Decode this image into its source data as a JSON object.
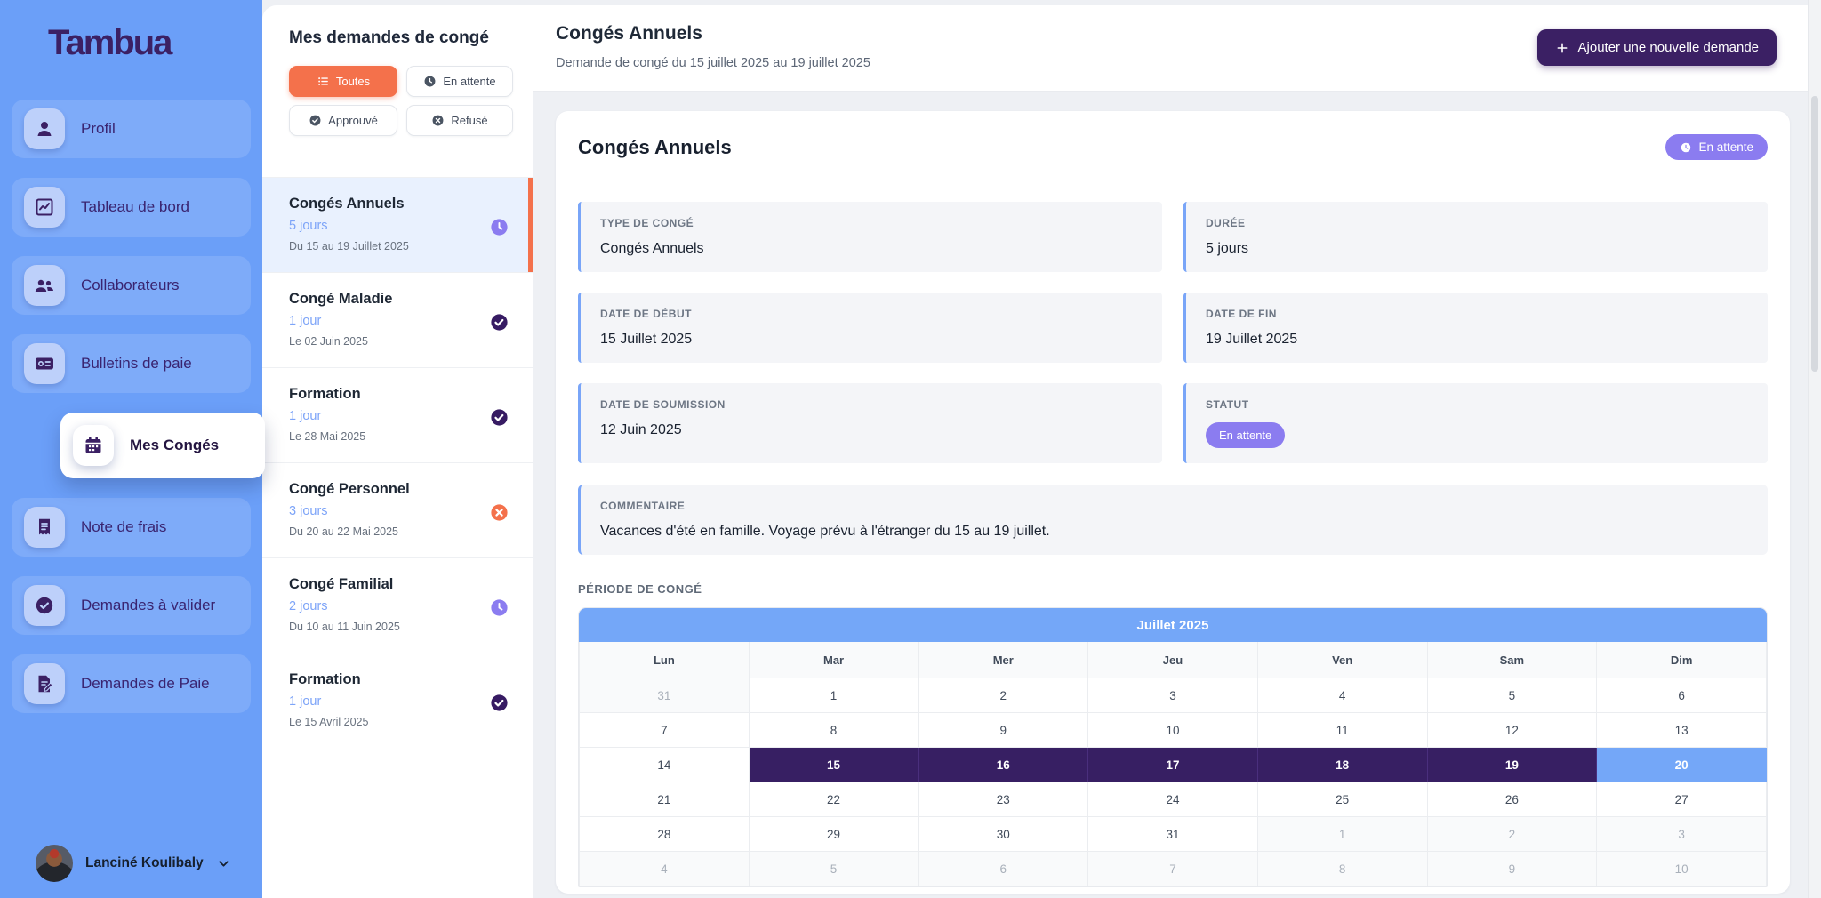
{
  "sidebar": {
    "logo": "Tambua",
    "items": [
      {
        "key": "profil",
        "label": "Profil",
        "icon": "user",
        "active": false
      },
      {
        "key": "tableau-de-bord",
        "label": "Tableau de bord",
        "icon": "line-chart",
        "active": false
      },
      {
        "key": "collaborateurs",
        "label": "Collaborateurs",
        "icon": "users",
        "active": false
      },
      {
        "key": "bulletins-de-paie",
        "label": "Bulletins de paie",
        "icon": "money-check",
        "active": false
      },
      {
        "key": "mes-conges",
        "label": "Mes Congés",
        "icon": "calendar",
        "active": true
      },
      {
        "key": "note-de-frais",
        "label": "Note de frais",
        "icon": "receipt",
        "active": false
      },
      {
        "key": "demandes-a-valider",
        "label": "Demandes à valider",
        "icon": "check-circle",
        "active": false
      },
      {
        "key": "demandes-de-paie",
        "label": "Demandes de Paie",
        "icon": "file-pen",
        "active": false
      }
    ],
    "user": {
      "name": "Lanciné Koulibaly",
      "menu_icon": "chevron-down-icon"
    }
  },
  "requests_panel": {
    "title": "Mes demandes de congé",
    "filters": [
      {
        "key": "toutes",
        "label": "Toutes",
        "icon": "list",
        "active": true
      },
      {
        "key": "en-attente",
        "label": "En attente",
        "icon": "clock",
        "active": false
      },
      {
        "key": "approuve",
        "label": "Approuvé",
        "icon": "check",
        "active": false
      },
      {
        "key": "refuse",
        "label": "Refusé",
        "icon": "x",
        "active": false
      }
    ],
    "items": [
      {
        "title": "Congés Annuels",
        "duration": "5 jours",
        "dates": "Du 15 au 19 Juillet 2025",
        "status": "pending",
        "selected": true
      },
      {
        "title": "Congé Maladie",
        "duration": "1 jour",
        "dates": "Le 02 Juin 2025",
        "status": "approved",
        "selected": false
      },
      {
        "title": "Formation",
        "duration": "1 jour",
        "dates": "Le 28 Mai 2025",
        "status": "approved",
        "selected": false
      },
      {
        "title": "Congé Personnel",
        "duration": "3 jours",
        "dates": "Du 20 au 22 Mai 2025",
        "status": "rejected",
        "selected": false
      },
      {
        "title": "Congé Familial",
        "duration": "2 jours",
        "dates": "Du 10 au 11 Juin 2025",
        "status": "pending",
        "selected": false
      },
      {
        "title": "Formation",
        "duration": "1 jour",
        "dates": "Le 15 Avril 2025",
        "status": "approved",
        "selected": false
      }
    ]
  },
  "header": {
    "title": "Congés Annuels",
    "subtitle": "Demande de congé du 15 juillet 2025 au 19 juillet 2025",
    "add_button": "Ajouter une nouvelle demande",
    "add_button_icon": "plus-icon"
  },
  "detail": {
    "title": "Congés Annuels",
    "status_badge": "En attente",
    "status_badge_icon": "clock-icon",
    "fields": [
      {
        "label": "TYPE DE CONGÉ",
        "value": "Congés Annuels",
        "type": "text"
      },
      {
        "label": "DURÉE",
        "value": "5 jours",
        "type": "text"
      },
      {
        "label": "DATE DE DÉBUT",
        "value": "15 Juillet 2025",
        "type": "text"
      },
      {
        "label": "DATE DE FIN",
        "value": "19 Juillet 2025",
        "type": "text"
      },
      {
        "label": "DATE DE SOUMISSION",
        "value": "12 Juin 2025",
        "type": "text"
      },
      {
        "label": "STATUT",
        "value": "En attente",
        "type": "badge"
      }
    ],
    "comment_label": "COMMENTAIRE",
    "comment": "Vacances d'été en famille. Voyage prévu à l'étranger du 15 au 19 juillet.",
    "period_label": "PÉRIODE DE CONGÉ",
    "calendar": {
      "month": "Juillet 2025",
      "day_names": [
        "Lun",
        "Mar",
        "Mer",
        "Jeu",
        "Ven",
        "Sam",
        "Dim"
      ],
      "weeks": [
        [
          {
            "d": "31",
            "t": "out"
          },
          {
            "d": "1",
            "t": "n"
          },
          {
            "d": "2",
            "t": "n"
          },
          {
            "d": "3",
            "t": "n"
          },
          {
            "d": "4",
            "t": "n"
          },
          {
            "d": "5",
            "t": "n"
          },
          {
            "d": "6",
            "t": "n"
          }
        ],
        [
          {
            "d": "7",
            "t": "n"
          },
          {
            "d": "8",
            "t": "n"
          },
          {
            "d": "9",
            "t": "n"
          },
          {
            "d": "10",
            "t": "n"
          },
          {
            "d": "11",
            "t": "n"
          },
          {
            "d": "12",
            "t": "n"
          },
          {
            "d": "13",
            "t": "n"
          }
        ],
        [
          {
            "d": "14",
            "t": "n"
          },
          {
            "d": "15",
            "t": "range"
          },
          {
            "d": "16",
            "t": "range"
          },
          {
            "d": "17",
            "t": "range"
          },
          {
            "d": "18",
            "t": "range"
          },
          {
            "d": "19",
            "t": "range"
          },
          {
            "d": "20",
            "t": "today"
          }
        ],
        [
          {
            "d": "21",
            "t": "n"
          },
          {
            "d": "22",
            "t": "n"
          },
          {
            "d": "23",
            "t": "n"
          },
          {
            "d": "24",
            "t": "n"
          },
          {
            "d": "25",
            "t": "n"
          },
          {
            "d": "26",
            "t": "n"
          },
          {
            "d": "27",
            "t": "n"
          }
        ],
        [
          {
            "d": "28",
            "t": "n"
          },
          {
            "d": "29",
            "t": "n"
          },
          {
            "d": "30",
            "t": "n"
          },
          {
            "d": "31",
            "t": "n"
          },
          {
            "d": "1",
            "t": "out"
          },
          {
            "d": "2",
            "t": "out"
          },
          {
            "d": "3",
            "t": "out"
          }
        ],
        [
          {
            "d": "4",
            "t": "out"
          },
          {
            "d": "5",
            "t": "out"
          },
          {
            "d": "6",
            "t": "out"
          },
          {
            "d": "7",
            "t": "out"
          },
          {
            "d": "8",
            "t": "out"
          },
          {
            "d": "9",
            "t": "out"
          },
          {
            "d": "10",
            "t": "out"
          }
        ]
      ]
    }
  },
  "colors": {
    "sidebar_blue": "#6b9ff8",
    "brand_purple": "#3b2064",
    "accent_orange": "#f4714b",
    "pending_lavender": "#8b7cf0",
    "approved_purple": "#371b63",
    "rejected_orange": "#f4714b",
    "range_purple": "#371f63",
    "today_blue": "#74a7f8",
    "link_blue": "#7da4f8"
  }
}
